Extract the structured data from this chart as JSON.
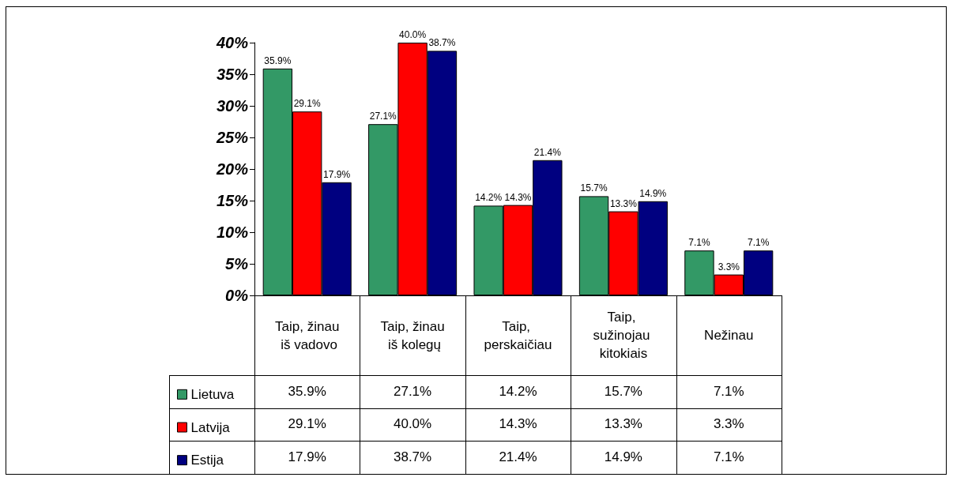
{
  "chart_data": {
    "type": "bar",
    "categories": [
      "Taip, žinau iš vadovo",
      "Taip, žinau iš kolegų",
      "Taip, perskaičiau",
      "Taip, sužinojau kitokiais",
      "Nežinau"
    ],
    "series": [
      {
        "name": "Lietuva",
        "color": "#339966",
        "values": [
          35.9,
          27.1,
          14.2,
          15.7,
          7.1
        ],
        "value_labels": [
          "35.9%",
          "27.1%",
          "14.2%",
          "15.7%",
          "7.1%"
        ]
      },
      {
        "name": "Latvija",
        "color": "#ff0000",
        "values": [
          29.1,
          40.0,
          14.3,
          13.3,
          3.3
        ],
        "value_labels": [
          "29.1%",
          "40.0%",
          "14.3%",
          "13.3%",
          "3.3%"
        ]
      },
      {
        "name": "Estija",
        "color": "#000080",
        "values": [
          17.9,
          38.7,
          21.4,
          14.9,
          7.1
        ],
        "value_labels": [
          "17.9%",
          "38.7%",
          "21.4%",
          "14.9%",
          "7.1%"
        ]
      }
    ],
    "ylim": [
      0,
      40
    ],
    "yticks": [
      {
        "value": 0,
        "label": "0%"
      },
      {
        "value": 5,
        "label": "5%"
      },
      {
        "value": 10,
        "label": "10%"
      },
      {
        "value": 15,
        "label": "15%"
      },
      {
        "value": 20,
        "label": "20%"
      },
      {
        "value": 25,
        "label": "25%"
      },
      {
        "value": 30,
        "label": "30%"
      },
      {
        "value": 35,
        "label": "35%"
      },
      {
        "value": 40,
        "label": "40%"
      }
    ],
    "grid": false,
    "legend": "bottom left"
  }
}
